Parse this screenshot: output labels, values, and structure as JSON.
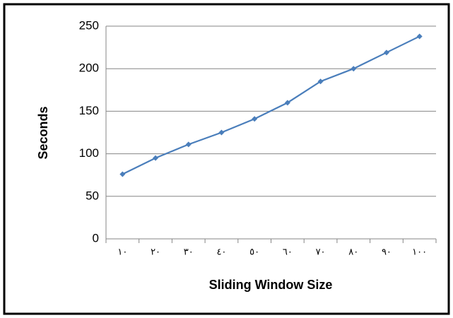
{
  "chart_data": {
    "type": "line",
    "xlabel": "Sliding Window Size",
    "ylabel": "Seconds",
    "categories": [
      "١٠",
      "٢٠",
      "٣٠",
      "٤٠",
      "٥٠",
      "٦٠",
      "٧٠",
      "٨٠",
      "٩٠",
      "١٠٠"
    ],
    "values": [
      76,
      95,
      111,
      125,
      141,
      160,
      185,
      200,
      219,
      238
    ],
    "color": "#4a7ebb",
    "ylim": [
      0,
      250
    ],
    "yticks": [
      0,
      50,
      100,
      150,
      200,
      250
    ],
    "grid": true
  }
}
